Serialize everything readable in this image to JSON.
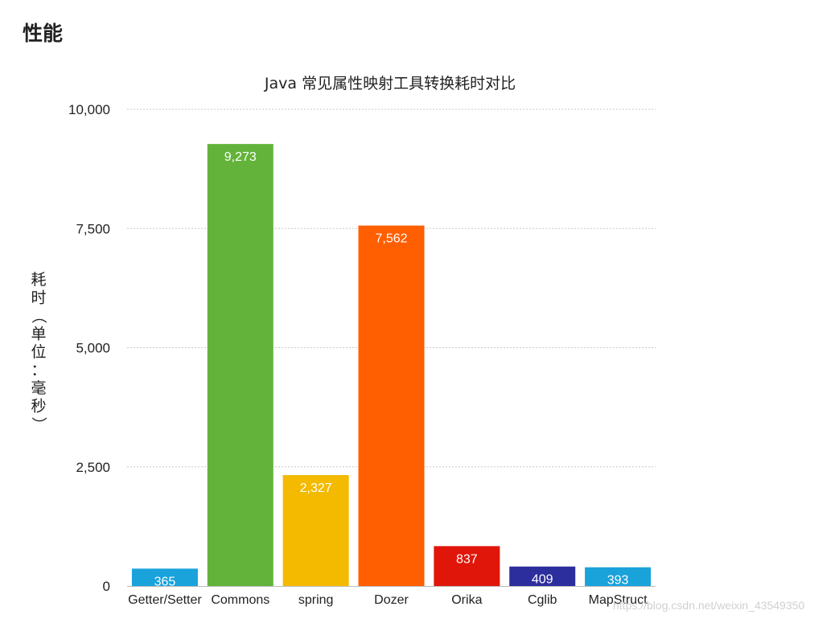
{
  "page": {
    "heading": "性能",
    "watermark": "https://blog.csdn.net/weixin_43549350"
  },
  "chart_data": {
    "type": "bar",
    "title": "Java 常见属性映射工具转换耗时对比",
    "xlabel": "",
    "ylabel": "耗时（单位：毫秒）",
    "ylim": [
      0,
      10000
    ],
    "yticks": [
      0,
      2500,
      5000,
      7500,
      10000
    ],
    "ytick_labels": [
      "0",
      "2,500",
      "5,000",
      "7,500",
      "10,000"
    ],
    "grid": true,
    "categories": [
      "Getter/Setter",
      "Commons",
      "spring",
      "Dozer",
      "Orika",
      "Cglib",
      "MapStruct"
    ],
    "values": [
      365,
      9273,
      2327,
      7562,
      837,
      409,
      393
    ],
    "value_labels": [
      "365",
      "9,273",
      "2,327",
      "7,562",
      "837",
      "409",
      "393"
    ],
    "colors": [
      "#1AA2DB",
      "#63B33A",
      "#F3BA00",
      "#FF5F00",
      "#E0160A",
      "#2D2E9E",
      "#1AA2DB"
    ]
  }
}
